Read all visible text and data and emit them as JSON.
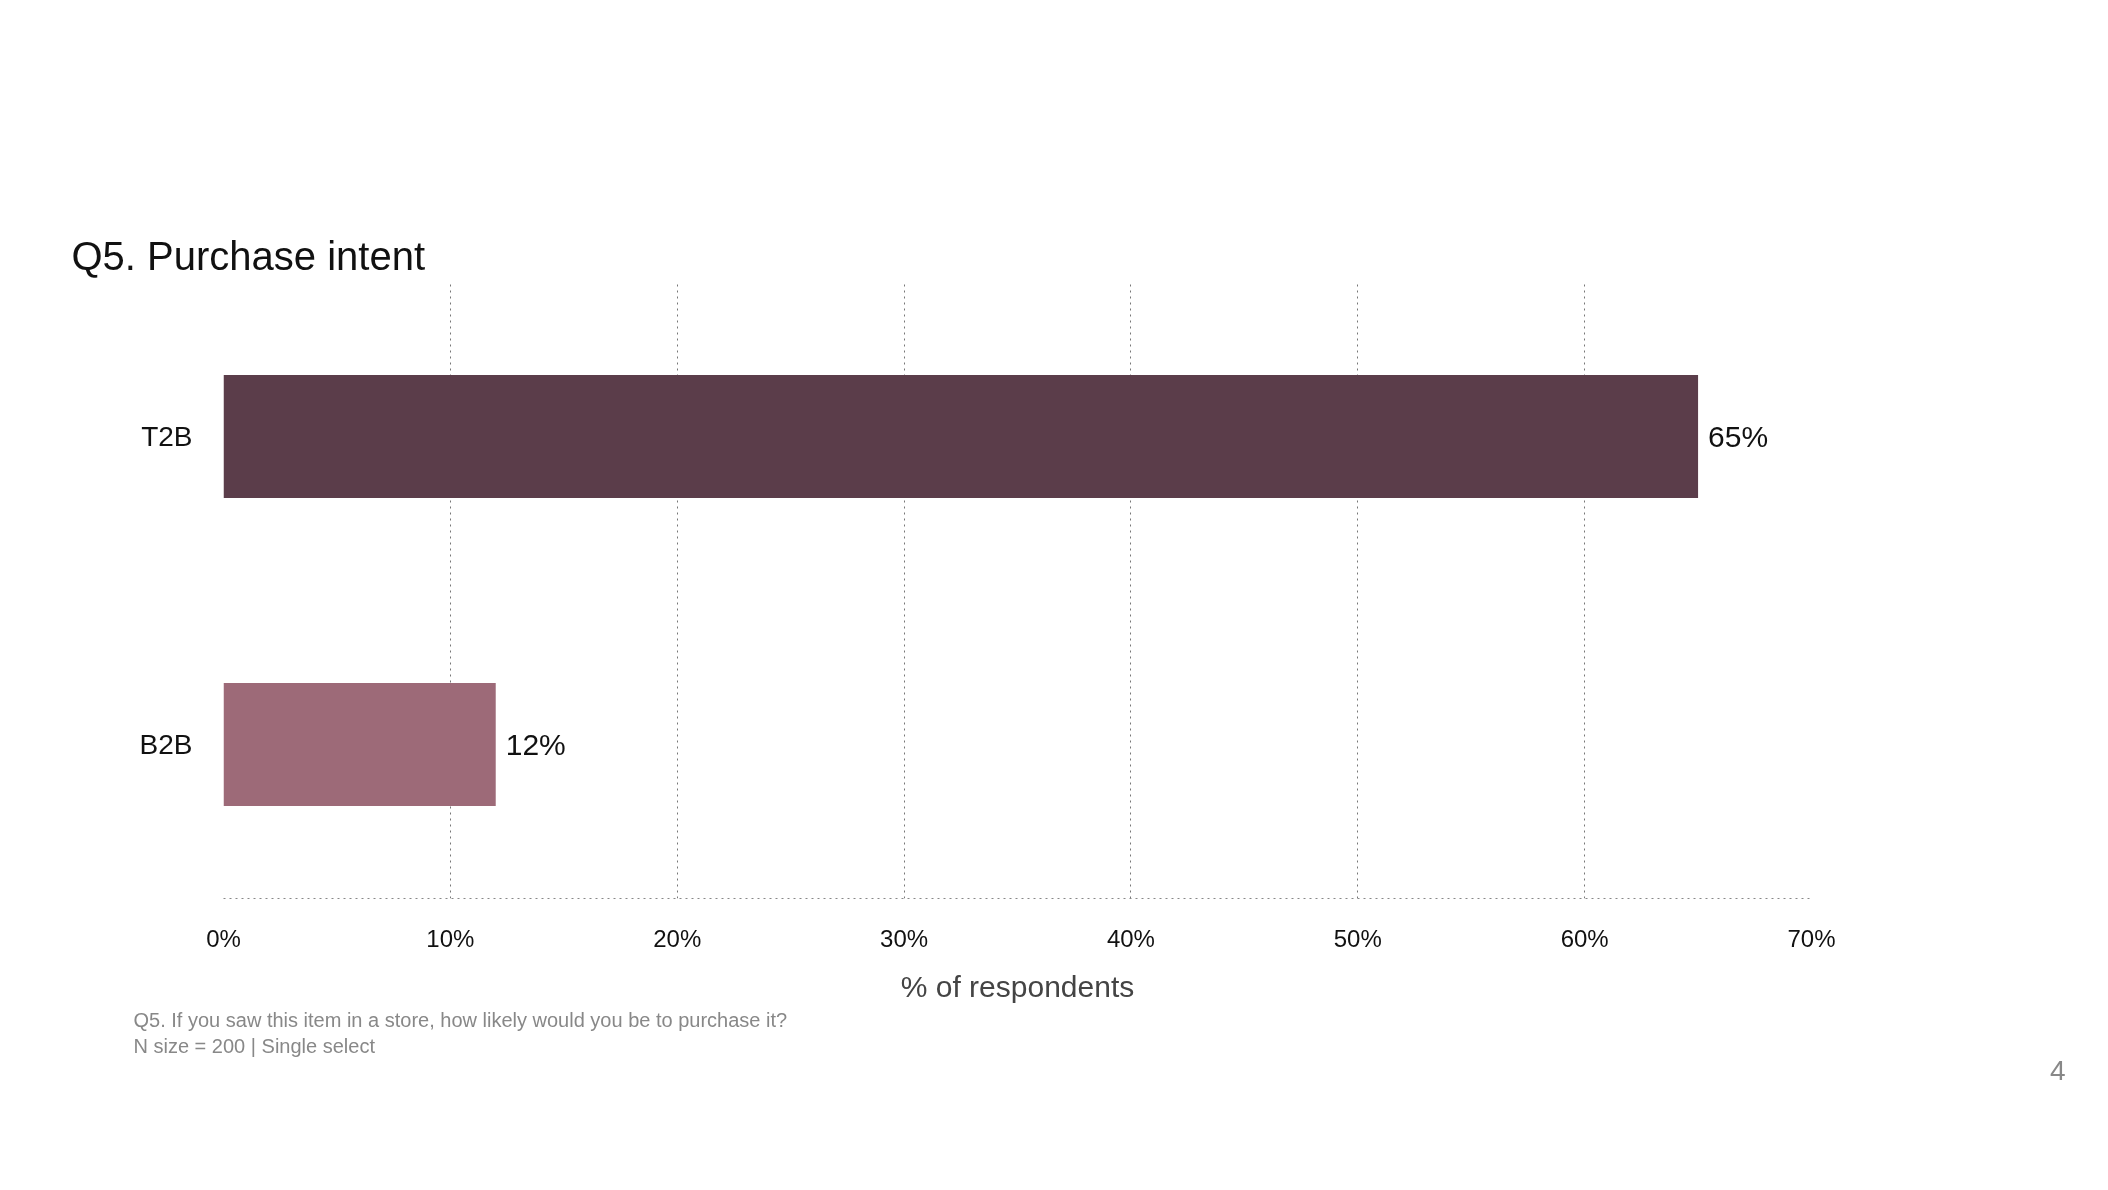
{
  "chart_data": {
    "type": "bar",
    "orientation": "horizontal",
    "title": "Q5. Purchase intent",
    "categories": [
      "T2B",
      "B2B"
    ],
    "values": [
      65,
      12
    ],
    "colors": [
      "#5b3d4a",
      "#9d6a78"
    ],
    "value_labels": [
      "65%",
      "12%"
    ],
    "xlabel": "% of respondents",
    "xlim": [
      0,
      70
    ],
    "xticks": [
      {
        "value": 0,
        "label": "0%"
      },
      {
        "value": 10,
        "label": "10%"
      },
      {
        "value": 20,
        "label": "20%"
      },
      {
        "value": 30,
        "label": "30%"
      },
      {
        "value": 40,
        "label": "40%"
      },
      {
        "value": 50,
        "label": "50%"
      },
      {
        "value": 60,
        "label": "60%"
      },
      {
        "value": 70,
        "label": "70%"
      }
    ],
    "grid": "x",
    "annotations": [
      "Q5. If you saw this item in a store, how likely would you be to purchase it?",
      "N size = 200 | Single select",
      "4"
    ]
  }
}
